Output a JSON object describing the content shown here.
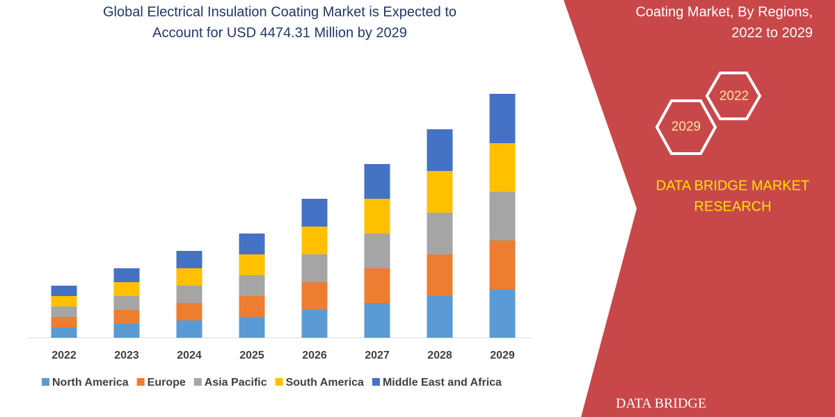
{
  "chart_data": {
    "type": "stacked-bar",
    "title": [
      "Global Electrical Insulation Coating Market is Expected to",
      "Account for USD 4474.31 Million by 2029"
    ],
    "categories": [
      "2022",
      "2023",
      "2024",
      "2025",
      "2026",
      "2027",
      "2028",
      "2029"
    ],
    "series": [
      {
        "name": "North America",
        "color": "#5b9bd5",
        "values": [
          15,
          20,
          25,
          30,
          40,
          50,
          60,
          70
        ]
      },
      {
        "name": "Europe",
        "color": "#ed7d31",
        "values": [
          15,
          20,
          25,
          30,
          40,
          50,
          60,
          70
        ]
      },
      {
        "name": "Asia Pacific",
        "color": "#a5a5a5",
        "values": [
          15,
          20,
          25,
          30,
          40,
          50,
          60,
          70
        ]
      },
      {
        "name": "South America",
        "color": "#ffc000",
        "values": [
          15,
          20,
          25,
          30,
          40,
          50,
          60,
          70
        ]
      },
      {
        "name": "Middle East and Africa",
        "color": "#4472c4",
        "values": [
          15,
          20,
          25,
          30,
          40,
          50,
          60,
          71
        ]
      }
    ]
  },
  "panel": {
    "heading": [
      "Coating Market, By Regions,",
      "2022 to 2029"
    ],
    "hexagons": [
      "2022",
      "2029"
    ],
    "brand": [
      "DATA BRIDGE MARKET",
      "RESEARCH"
    ],
    "logo": "DATA BRIDGE"
  }
}
